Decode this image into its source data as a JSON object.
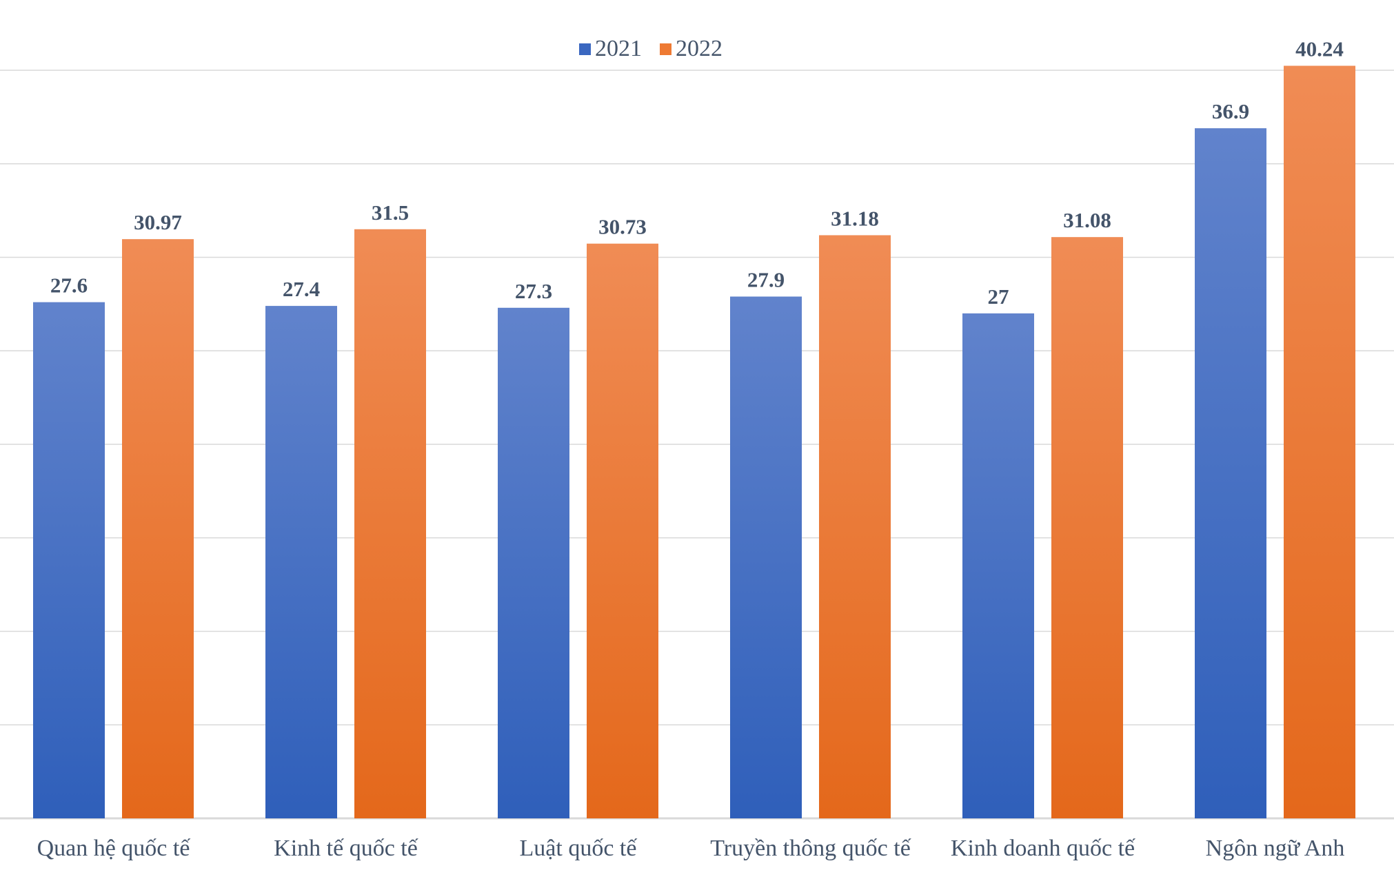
{
  "chart_data": {
    "type": "bar",
    "categories": [
      "Quan hệ quốc tế",
      "Kinh tế quốc tế",
      "Luật quốc tế",
      "Truyền thông quốc tế",
      "Kinh doanh quốc tế",
      "Ngôn ngữ Anh"
    ],
    "series": [
      {
        "name": "2021",
        "values": [
          27.6,
          27.4,
          27.3,
          27.9,
          27,
          36.9
        ],
        "labels": [
          "27.6",
          "27.4",
          "27.3",
          "27.9",
          "27",
          "36.9"
        ],
        "color": "#2f5fba",
        "color_light": "#6183cc"
      },
      {
        "name": "2022",
        "values": [
          30.97,
          31.5,
          30.73,
          31.18,
          31.08,
          40.24
        ],
        "labels": [
          "30.97",
          "31.5",
          "30.73",
          "31.18",
          "31.08",
          "40.24"
        ],
        "color": "#e4681b",
        "color_light": "#f08c55"
      }
    ],
    "title": "",
    "xlabel": "",
    "ylabel": "",
    "ylim": [
      0,
      40
    ],
    "grid_step": 5,
    "grid": true,
    "y_tick_labels_shown": false,
    "legend_placement": "top-center",
    "text_color": "#44546a",
    "grid_color": "#d9d9d9"
  }
}
